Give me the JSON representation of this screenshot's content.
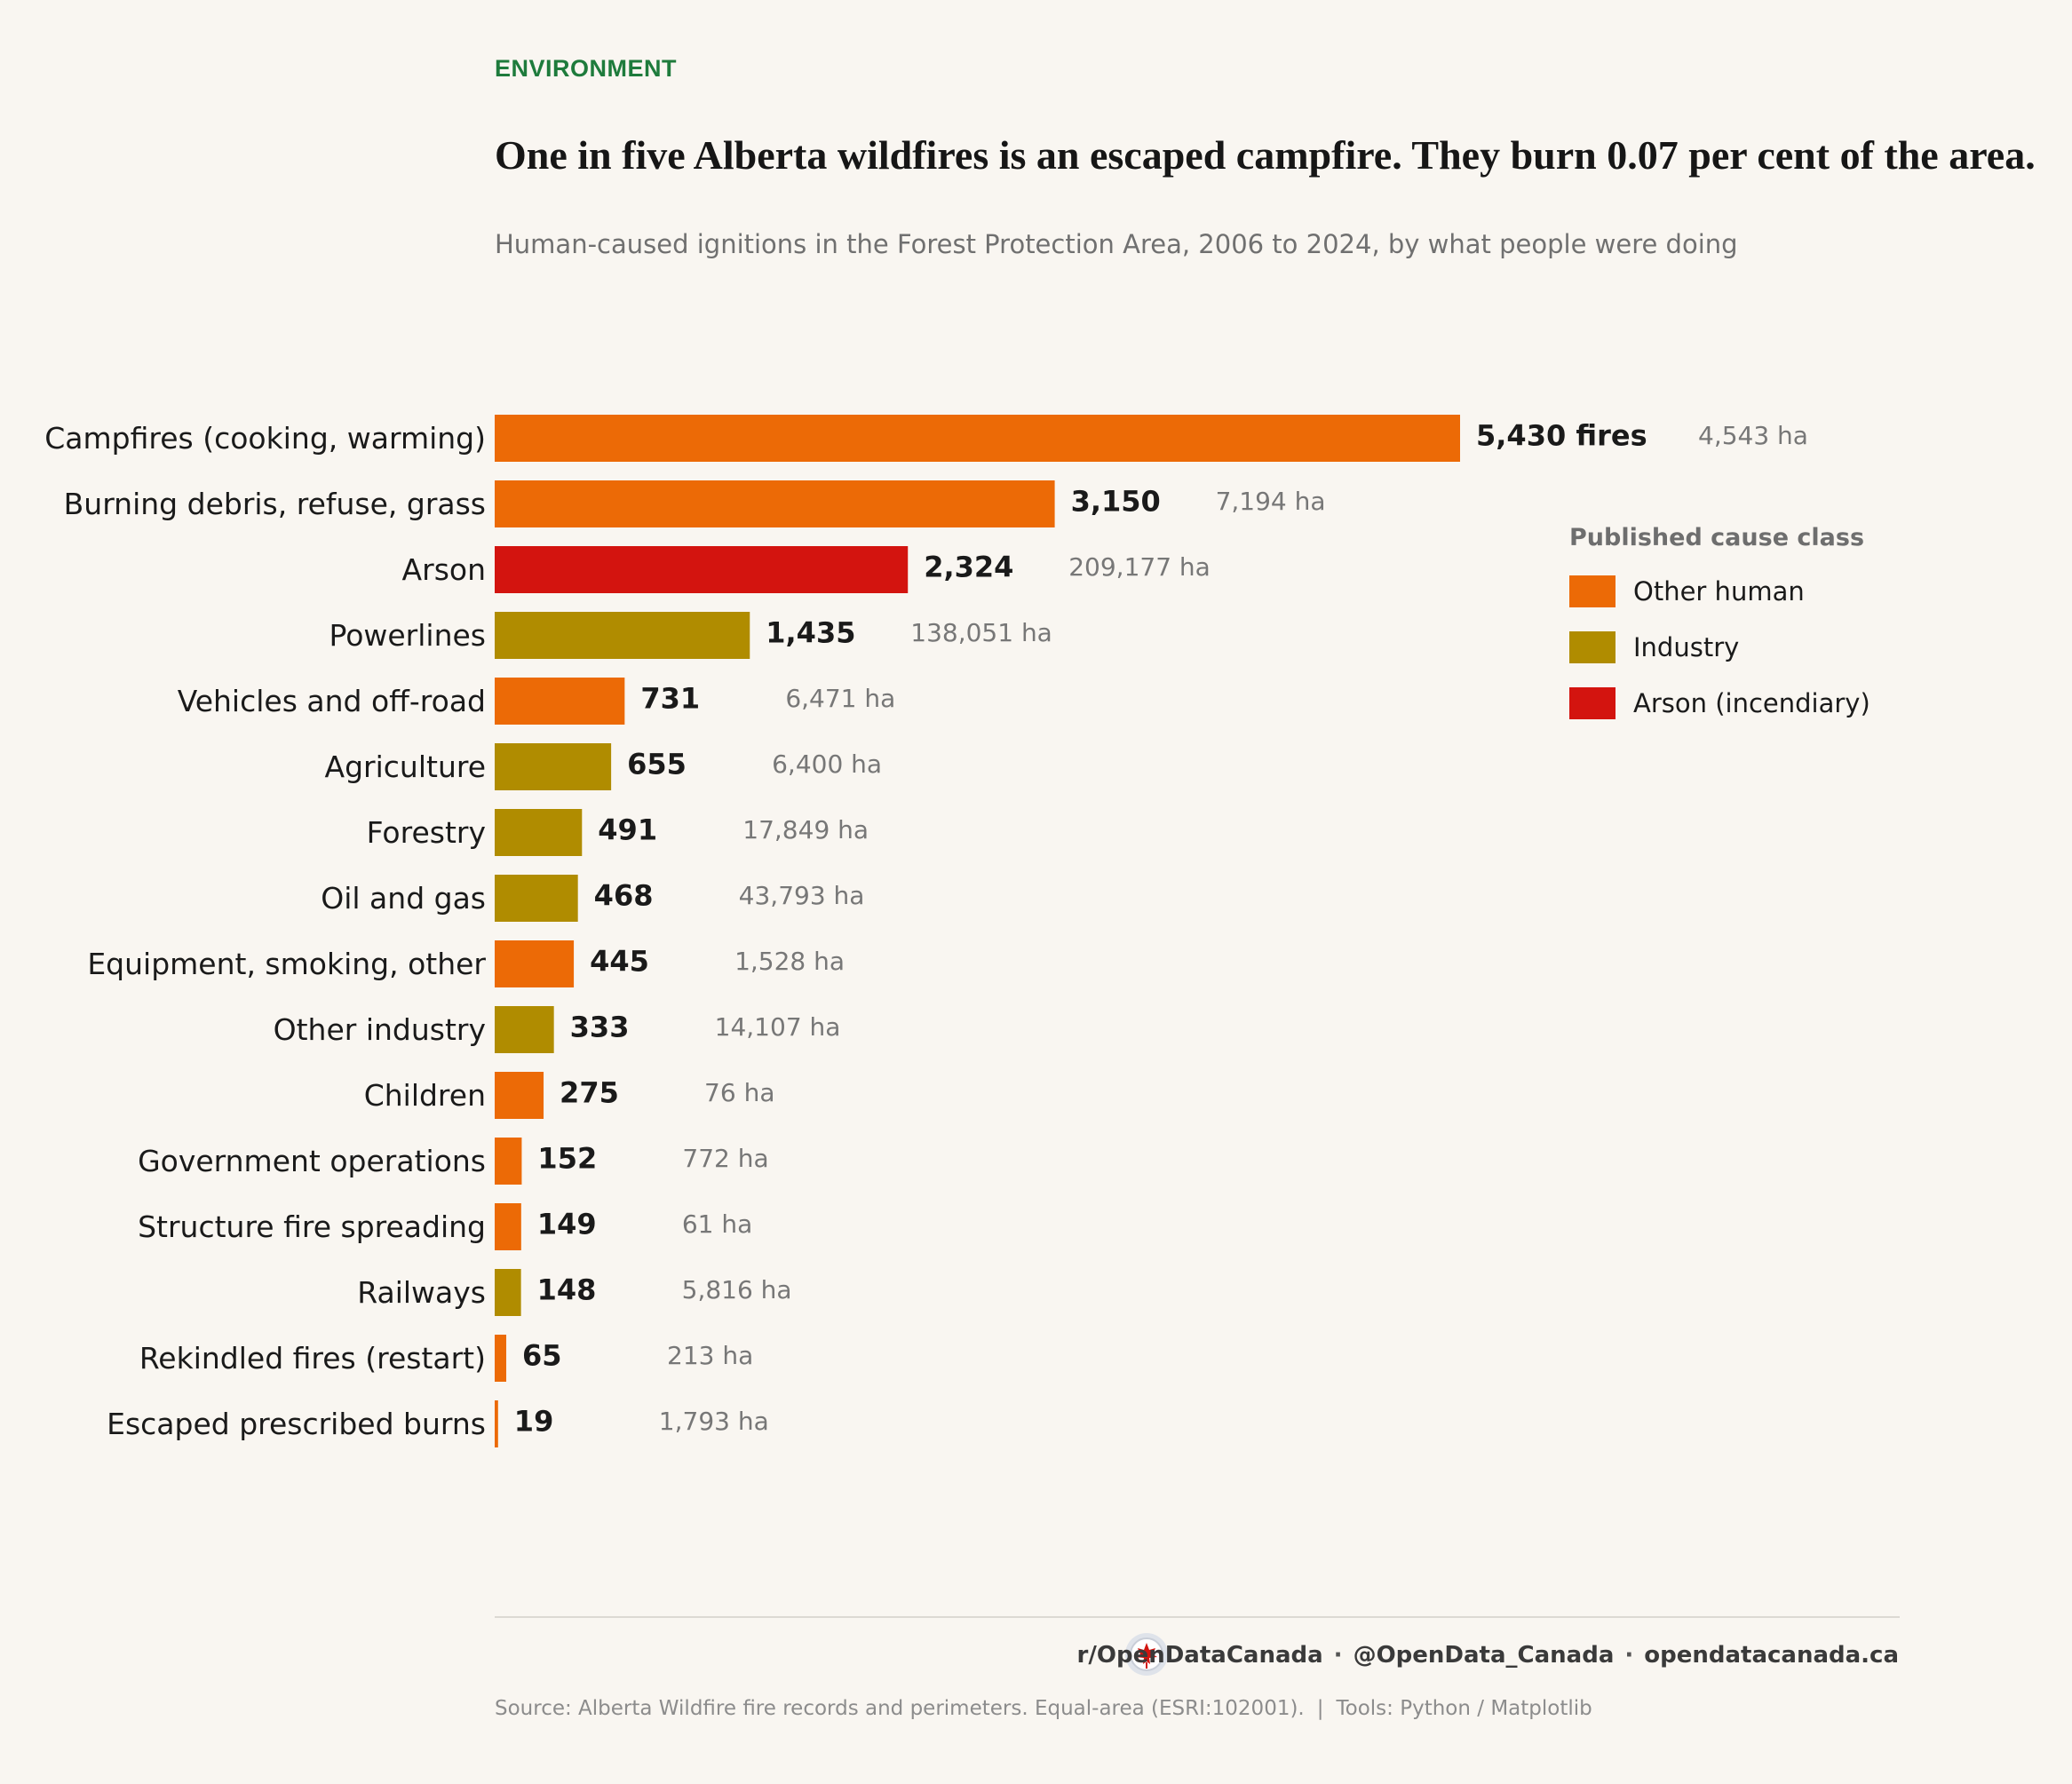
{
  "header": {
    "kicker": "ENVIRONMENT",
    "title": "One in five Alberta wildfires is an escaped campfire. They burn 0.07 per cent of the area.",
    "subtitle": "Human-caused ignitions in the Forest Protection Area, 2006 to 2024, by what people were doing"
  },
  "legend": {
    "title": "Published cause class",
    "items": [
      {
        "label": "Other human",
        "color": "#ec6a06"
      },
      {
        "label": "Industry",
        "color": "#b08c00"
      },
      {
        "label": "Arson (incendiary)",
        "color": "#d3140f"
      }
    ]
  },
  "chart_data": {
    "type": "bar",
    "orientation": "horizontal",
    "categories": [
      "Campfires (cooking, warming)",
      "Burning debris, refuse, grass",
      "Arson",
      "Powerlines",
      "Vehicles and off-road",
      "Agriculture",
      "Forestry",
      "Oil and gas",
      "Equipment, smoking, other",
      "Other industry",
      "Children",
      "Government operations",
      "Structure fire spreading",
      "Railways",
      "Rekindled fires (restart)",
      "Escaped prescribed burns"
    ],
    "values": [
      5430,
      3150,
      2324,
      1435,
      731,
      655,
      491,
      468,
      445,
      333,
      275,
      152,
      149,
      148,
      65,
      19
    ],
    "value_labels": [
      "5,430 fires",
      "3,150",
      "2,324",
      "1,435",
      "731",
      "655",
      "491",
      "468",
      "445",
      "333",
      "275",
      "152",
      "149",
      "148",
      "65",
      "19"
    ],
    "area_labels": [
      "4,543 ha",
      "7,194 ha",
      "209,177 ha",
      "138,051 ha",
      "6,471 ha",
      "6,400 ha",
      "17,849 ha",
      "43,793 ha",
      "1,528 ha",
      "14,107 ha",
      "76 ha",
      "772 ha",
      "61 ha",
      "5,816 ha",
      "213 ha",
      "1,793 ha"
    ],
    "classes": [
      "Other human",
      "Other human",
      "Arson (incendiary)",
      "Industry",
      "Other human",
      "Industry",
      "Industry",
      "Industry",
      "Other human",
      "Industry",
      "Other human",
      "Other human",
      "Other human",
      "Industry",
      "Other human",
      "Other human"
    ],
    "xlim": [
      0,
      5430
    ],
    "grid": false,
    "legend_position": "right"
  },
  "footer": {
    "links": [
      "r/OpenDataCanada",
      "@OpenData_Canada",
      "opendatacanada.ca"
    ],
    "separator": "·",
    "source": "Source: Alberta Wildfire fire records and perimeters. Equal-area (ESRI:102001).",
    "divider": "|",
    "tools": "Tools: Python / Matplotlib"
  }
}
